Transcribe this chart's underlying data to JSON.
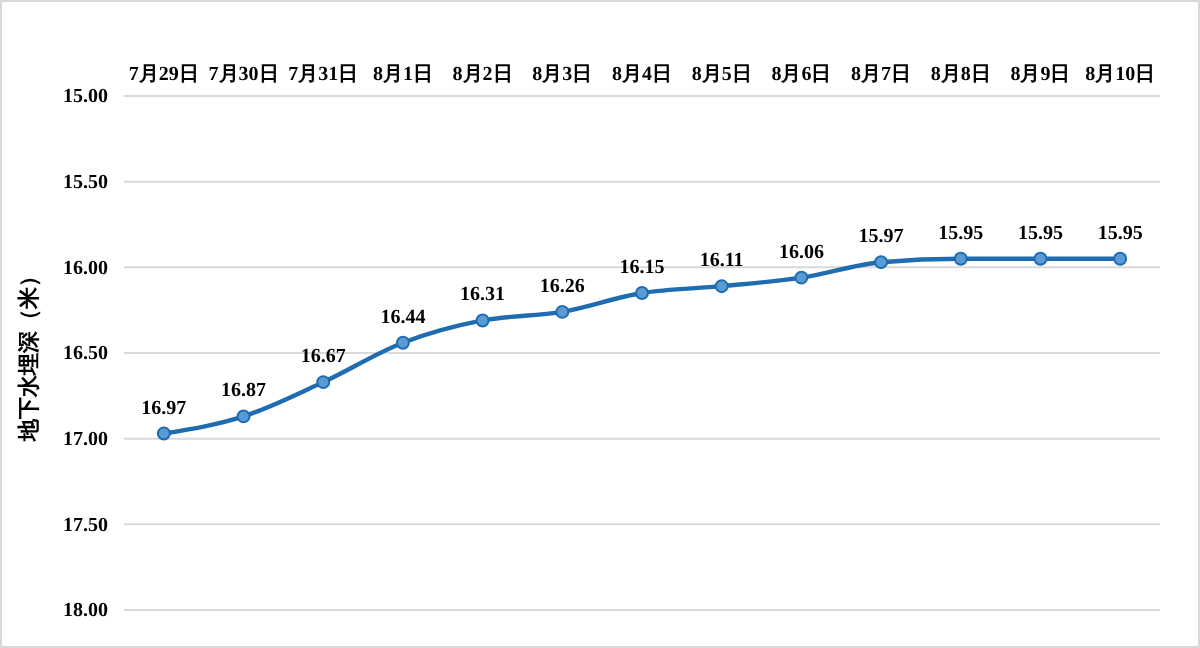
{
  "chart_data": {
    "type": "line",
    "ylabel": "地下水埋深（米）",
    "categories": [
      "7月29日",
      "7月30日",
      "7月31日",
      "8月1日",
      "8月2日",
      "8月3日",
      "8月4日",
      "8月5日",
      "8月6日",
      "8月7日",
      "8月8日",
      "8月9日",
      "8月10日"
    ],
    "series": [
      {
        "color": "#1f6cb0",
        "values": [
          16.97,
          16.87,
          16.67,
          16.44,
          16.31,
          16.26,
          16.15,
          16.11,
          16.06,
          15.97,
          15.95,
          15.95,
          15.95
        ]
      }
    ],
    "ylim": [
      18,
      15
    ],
    "yticks": [
      {
        "value": 15,
        "label": "15.00"
      },
      {
        "value": 15.5,
        "label": "15.50"
      },
      {
        "value": 16,
        "label": "16.00"
      },
      {
        "value": 16.5,
        "label": "16.50"
      },
      {
        "value": 17,
        "label": "17.00"
      },
      {
        "value": 17.5,
        "label": "17.50"
      },
      {
        "value": 18,
        "label": "18.00"
      }
    ],
    "grid": "y",
    "marker": "circle",
    "line_style": "solid",
    "data_labels": true
  }
}
